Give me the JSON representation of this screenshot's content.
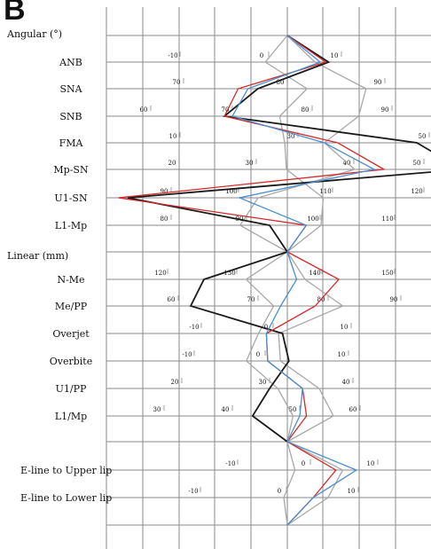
{
  "panel_label": "B",
  "chart_data": {
    "type": "line",
    "orientation": "vertical-profile",
    "sections": {
      "angular": "Angular (°)",
      "linear": "Linear (mm)"
    },
    "rows": [
      {
        "id": "anb",
        "label": "ANB",
        "ticks": [
          {
            "text": "-10"
          },
          {
            "text": "0"
          },
          {
            "text": "10"
          }
        ]
      },
      {
        "id": "sna",
        "label": "SNA",
        "ticks": [
          {
            "text": "70"
          },
          {
            "text": "80"
          },
          {
            "text": "90"
          }
        ]
      },
      {
        "id": "snb",
        "label": "SNB",
        "ticks": [
          {
            "text": "60"
          },
          {
            "text": "70"
          },
          {
            "text": "80"
          },
          {
            "text": "90"
          }
        ]
      },
      {
        "id": "fma",
        "label": "FMA",
        "ticks": [
          {
            "text": "10"
          },
          {
            "text": "30"
          },
          {
            "text": "50"
          }
        ]
      },
      {
        "id": "mpsn",
        "label": "Mp-SN",
        "ticks": [
          {
            "text": "20"
          },
          {
            "text": "30"
          },
          {
            "text": "40"
          },
          {
            "text": "50"
          }
        ]
      },
      {
        "id": "u1sn",
        "label": "U1-SN",
        "ticks": [
          {
            "text": "90"
          },
          {
            "text": "100"
          },
          {
            "text": "110"
          },
          {
            "text": "120"
          }
        ]
      },
      {
        "id": "l1mp",
        "label": "L1-Mp",
        "ticks": [
          {
            "text": "80"
          },
          {
            "text": "90"
          },
          {
            "text": "100"
          },
          {
            "text": "110"
          }
        ]
      },
      {
        "id": "nme",
        "label": "N-Me",
        "ticks": [
          {
            "text": "120"
          },
          {
            "text": "130"
          },
          {
            "text": "140"
          },
          {
            "text": "150"
          }
        ]
      },
      {
        "id": "mepp",
        "label": "Me/PP",
        "ticks": [
          {
            "text": "60"
          },
          {
            "text": "70"
          },
          {
            "text": "80"
          },
          {
            "text": "90"
          }
        ]
      },
      {
        "id": "overjet",
        "label": "Overjet",
        "ticks": [
          {
            "text": "-10"
          },
          {
            "text": "0"
          },
          {
            "text": "10"
          }
        ]
      },
      {
        "id": "overbite",
        "label": "Overbite",
        "ticks": [
          {
            "text": "-10"
          },
          {
            "text": "0"
          },
          {
            "text": "10"
          }
        ]
      },
      {
        "id": "u1pp",
        "label": "U1/PP",
        "ticks": [
          {
            "text": "20"
          },
          {
            "text": "30"
          },
          {
            "text": "40"
          }
        ]
      },
      {
        "id": "l1mp2",
        "label": "L1/Mp",
        "ticks": [
          {
            "text": "30"
          },
          {
            "text": "40"
          },
          {
            "text": "50"
          },
          {
            "text": "60"
          }
        ]
      },
      {
        "id": "eup",
        "label": "E-line to Upper lip",
        "ticks": [
          {
            "text": "-10"
          },
          {
            "text": "0"
          },
          {
            "text": "10"
          }
        ]
      },
      {
        "id": "elo",
        "label": "E-line to Lower lip",
        "ticks": [
          {
            "text": "-10"
          },
          {
            "text": "0"
          },
          {
            "text": "10"
          }
        ]
      }
    ],
    "series": [
      {
        "color": "#1a1a1a",
        "values": {
          "anb": 7.5,
          "sna": 77,
          "snb": 69,
          "fma": 48,
          "mpsn": 51,
          "u1sn": 88,
          "l1mp": 93,
          "nme": 126,
          "mepp": 60,
          "overjet": 1.5,
          "overbite": 3,
          "u1pp": 30,
          "l1mp2": 43
        }
      },
      {
        "color": "#d42a2a",
        "values": {
          "anb": 7,
          "sna": 75,
          "snb": 69,
          "fma": 36,
          "mpsn": 43,
          "u1sn": 87,
          "l1mp": 98,
          "nme": 142,
          "mepp": 78,
          "overjet": -0.5,
          "overbite": 0.5,
          "u1pp": 34,
          "l1mp2": 51,
          "eup": 4,
          "elo": 4
        }
      },
      {
        "color": "#4a8fd0",
        "values": {
          "anb": 6,
          "sna": 76,
          "snb": 70,
          "fma": 34,
          "mpsn": 42,
          "u1sn": 100,
          "l1mp": 98,
          "nme": 137,
          "mepp": 73,
          "overjet": -0.5,
          "overbite": 0.5,
          "u1pp": 34,
          "l1mp2": 50,
          "eup": 7,
          "elo": 4
        }
      },
      {
        "color": "#a8a8a8",
        "values": {
          "anb": -4,
          "sna": 82,
          "snb": 76,
          "fma": 28,
          "mpsn": 33,
          "u1sn": 109,
          "l1mp": 100,
          "nme": 131,
          "mepp": 72,
          "overjet": -1.5,
          "overbite": -2,
          "u1pp": 31,
          "l1mp2": 49,
          "eup": -2,
          "elo": 0
        }
      },
      {
        "color": "#a8a8a8",
        "values": {
          "anb": 5,
          "sna": 88,
          "snb": 86,
          "fma": 34,
          "mpsn": 40,
          "u1sn": 102,
          "l1mp": 89,
          "nme": 138,
          "mepp": 82,
          "overjet": 1,
          "overbite": 2,
          "u1pp": 36,
          "l1mp2": 55,
          "eup": 5,
          "elo": 6
        }
      }
    ]
  }
}
